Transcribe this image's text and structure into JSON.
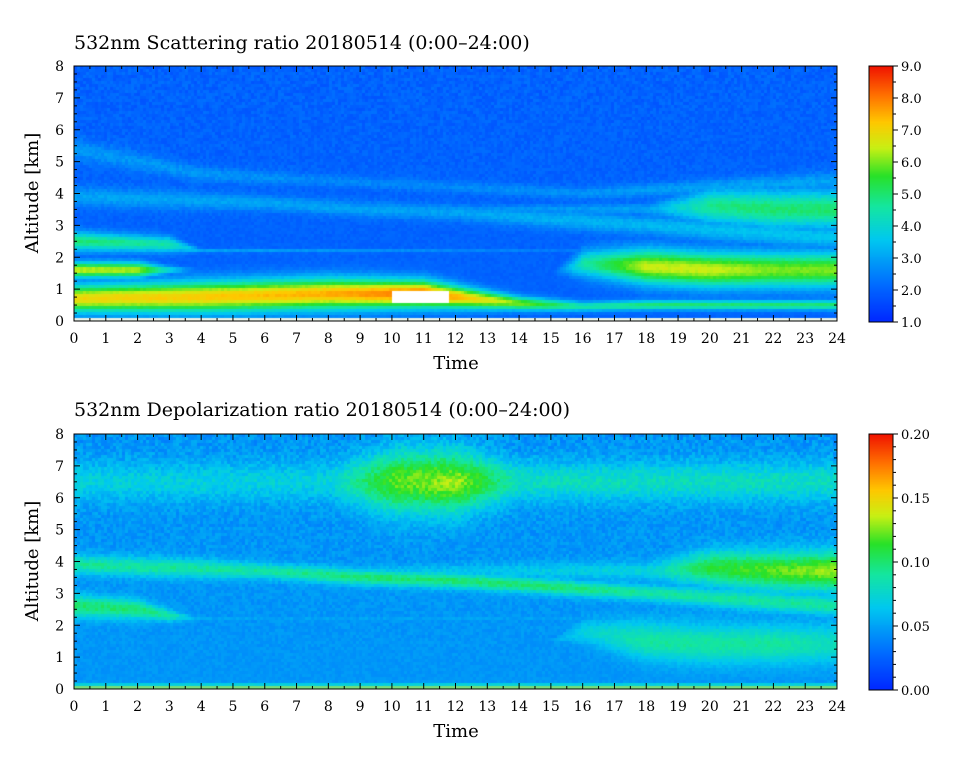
{
  "chart_data": [
    {
      "type": "heatmap",
      "title": "532nm Scattering ratio  20180514 (0:00–24:00)",
      "xlabel": "Time",
      "ylabel": "Altitude [km]",
      "xlim": [
        0,
        24
      ],
      "ylim": [
        0,
        8
      ],
      "x_ticks": [
        "0",
        "1",
        "2",
        "3",
        "4",
        "5",
        "6",
        "7",
        "8",
        "9",
        "10",
        "11",
        "12",
        "13",
        "14",
        "15",
        "16",
        "17",
        "18",
        "19",
        "20",
        "21",
        "22",
        "23",
        "24"
      ],
      "y_ticks": [
        "0",
        "1",
        "2",
        "3",
        "4",
        "5",
        "6",
        "7",
        "8"
      ],
      "colorbar": {
        "min": 1.0,
        "max": 9.0,
        "ticks": [
          "1.0",
          "2.0",
          "3.0",
          "4.0",
          "5.0",
          "6.0",
          "7.0",
          "8.0",
          "9.0"
        ]
      },
      "background_value": 2.0,
      "layers": [
        {
          "t": [
            0,
            4,
            8,
            11,
            14,
            16,
            18,
            20,
            22,
            24
          ],
          "center": [
            0.7,
            0.75,
            0.85,
            0.85,
            0.55,
            0.45,
            0.5,
            0.5,
            0.5,
            0.5
          ],
          "thickness": [
            0.7,
            0.8,
            0.8,
            0.7,
            0.35,
            0.25,
            0.25,
            0.25,
            0.25,
            0.25
          ],
          "value": [
            7.0,
            7.2,
            7.5,
            8.2,
            6.0,
            4.5,
            5.0,
            5.0,
            5.0,
            5.0
          ]
        },
        {
          "t": [
            0,
            2,
            3,
            4,
            24
          ],
          "center": [
            1.6,
            1.6,
            1.6,
            1.6,
            1.6
          ],
          "thickness": [
            0.4,
            0.4,
            0.2,
            0.05,
            0.05
          ],
          "value": [
            6.5,
            6.3,
            4.0,
            2.0,
            2.0
          ]
        },
        {
          "t": [
            0,
            3,
            4,
            24
          ],
          "center": [
            2.5,
            2.4,
            2.2,
            2.2
          ],
          "thickness": [
            0.5,
            0.4,
            0.1,
            0.05
          ],
          "value": [
            5.0,
            4.5,
            3.0,
            2.0
          ]
        },
        {
          "t": [
            0,
            15,
            16,
            18,
            20,
            22,
            24
          ],
          "center": [
            1.5,
            1.5,
            1.8,
            1.7,
            1.6,
            1.6,
            1.6
          ],
          "thickness": [
            0.05,
            0.05,
            0.7,
            0.9,
            0.9,
            0.9,
            0.9
          ],
          "value": [
            2.0,
            2.0,
            4.5,
            6.5,
            6.5,
            6.0,
            6.0
          ]
        },
        {
          "t": [
            0,
            18,
            20,
            22,
            24
          ],
          "center": [
            3.5,
            3.5,
            3.6,
            3.5,
            3.5
          ],
          "thickness": [
            0.05,
            0.3,
            0.9,
            1.0,
            1.0
          ],
          "value": [
            2.0,
            3.0,
            4.8,
            5.0,
            5.0
          ]
        },
        {
          "t": [
            0,
            3,
            6,
            9,
            12,
            15,
            18,
            21,
            24
          ],
          "center": [
            3.9,
            3.8,
            3.7,
            3.5,
            3.4,
            3.2,
            3.0,
            2.8,
            2.6
          ],
          "thickness": [
            0.5,
            0.5,
            0.4,
            0.4,
            0.4,
            0.5,
            0.5,
            0.6,
            0.6
          ],
          "value": [
            3.0,
            3.0,
            3.0,
            3.0,
            3.0,
            3.2,
            3.3,
            3.5,
            3.5
          ]
        },
        {
          "t": [
            0,
            2,
            4,
            8,
            12,
            16,
            20,
            24
          ],
          "center": [
            5.4,
            5.0,
            4.6,
            4.4,
            4.2,
            4.0,
            4.2,
            4.4
          ],
          "thickness": [
            0.6,
            0.5,
            0.4,
            0.3,
            0.3,
            0.3,
            0.4,
            0.5
          ],
          "value": [
            2.8,
            2.8,
            2.8,
            2.6,
            2.6,
            2.8,
            3.0,
            3.0
          ]
        }
      ],
      "saturated_regions": [
        {
          "t": [
            10.0,
            11.8
          ],
          "alt": [
            0.55,
            0.9
          ],
          "value": "above range"
        }
      ]
    },
    {
      "type": "heatmap",
      "title": "532nm Depolarization ratio  20180514 (0:00–24:00)",
      "xlabel": "Time",
      "ylabel": "Altitude [km]",
      "xlim": [
        0,
        24
      ],
      "ylim": [
        0,
        8
      ],
      "x_ticks": [
        "0",
        "1",
        "2",
        "3",
        "4",
        "5",
        "6",
        "7",
        "8",
        "9",
        "10",
        "11",
        "12",
        "13",
        "14",
        "15",
        "16",
        "17",
        "18",
        "19",
        "20",
        "21",
        "22",
        "23",
        "24"
      ],
      "y_ticks": [
        "0",
        "1",
        "2",
        "3",
        "4",
        "5",
        "6",
        "7",
        "8"
      ],
      "colorbar": {
        "min": 0.0,
        "max": 0.2,
        "ticks": [
          "0.00",
          "0.05",
          "0.10",
          "0.15",
          "0.20"
        ]
      },
      "background_value": 0.045,
      "layers": [
        {
          "t": [
            0,
            24
          ],
          "center": [
            0.1,
            0.1
          ],
          "thickness": [
            0.12,
            0.12
          ],
          "value": [
            0.08,
            0.08
          ]
        },
        {
          "t": [
            0,
            2,
            3,
            4,
            24
          ],
          "center": [
            2.6,
            2.5,
            2.3,
            2.2,
            2.2
          ],
          "thickness": [
            0.6,
            0.5,
            0.3,
            0.05,
            0.05
          ],
          "value": [
            0.1,
            0.1,
            0.09,
            0.05,
            0.05
          ]
        },
        {
          "t": [
            0,
            3,
            6,
            9,
            12,
            15,
            18,
            21,
            24
          ],
          "center": [
            3.9,
            3.8,
            3.7,
            3.5,
            3.4,
            3.2,
            3.0,
            2.8,
            2.6
          ],
          "thickness": [
            0.5,
            0.5,
            0.4,
            0.4,
            0.4,
            0.4,
            0.4,
            0.5,
            0.5
          ],
          "value": [
            0.09,
            0.09,
            0.09,
            0.1,
            0.1,
            0.1,
            0.09,
            0.09,
            0.09
          ]
        },
        {
          "t": [
            0,
            15,
            16,
            18,
            20,
            22,
            24
          ],
          "center": [
            1.5,
            1.5,
            1.8,
            1.5,
            1.4,
            1.4,
            1.4
          ],
          "thickness": [
            0.05,
            0.05,
            0.6,
            1.0,
            1.0,
            1.0,
            1.0
          ],
          "value": [
            0.05,
            0.05,
            0.07,
            0.09,
            0.09,
            0.09,
            0.08
          ]
        },
        {
          "t": [
            0,
            18,
            20,
            22,
            24
          ],
          "center": [
            3.7,
            3.7,
            3.8,
            3.7,
            3.7
          ],
          "thickness": [
            0.05,
            0.5,
            0.9,
            1.0,
            1.0
          ],
          "value": [
            0.05,
            0.07,
            0.11,
            0.12,
            0.13
          ]
        },
        {
          "t": [
            8,
            10,
            12,
            14
          ],
          "center": [
            6.5,
            6.5,
            6.5,
            6.5
          ],
          "thickness": [
            1.0,
            1.6,
            1.6,
            1.0
          ],
          "value": [
            0.07,
            0.12,
            0.13,
            0.08
          ]
        }
      ]
    }
  ]
}
